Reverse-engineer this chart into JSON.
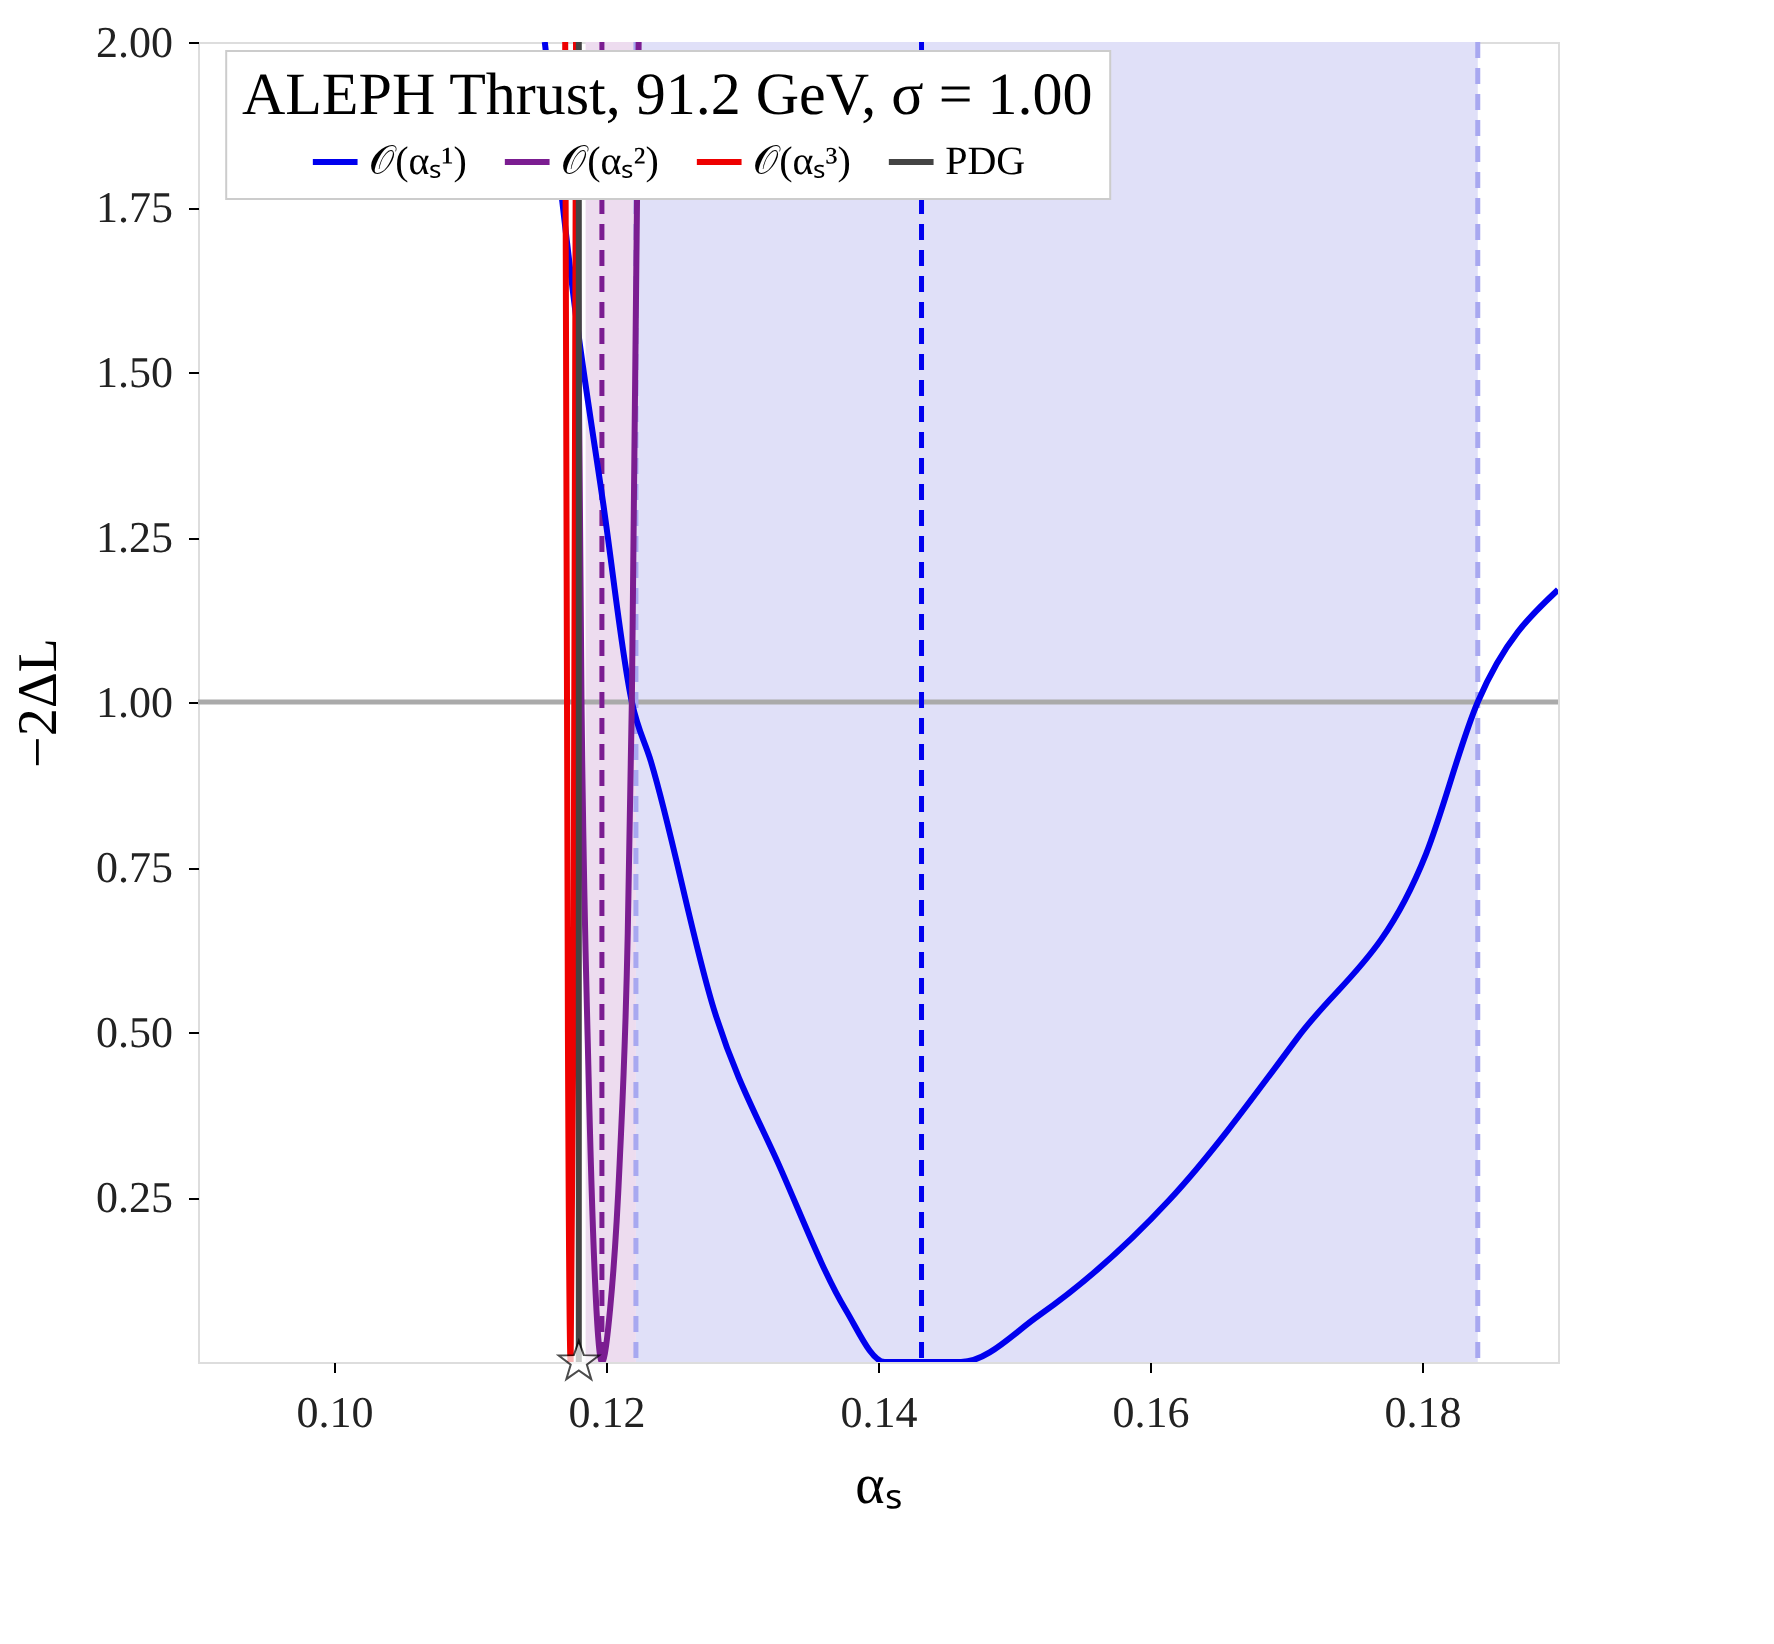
{
  "chart_data": {
    "type": "line",
    "legend_title": "ALEPH Thrust, 91.2 GeV, σ = 1.00",
    "xlabel": "αₛ",
    "ylabel": "−2ΔL",
    "xlim": [
      0.09,
      0.19
    ],
    "xticks": [
      {
        "value": 0.1,
        "label": "0.10"
      },
      {
        "value": 0.12,
        "label": "0.12"
      },
      {
        "value": 0.14,
        "label": "0.14"
      },
      {
        "value": 0.16,
        "label": "0.16"
      },
      {
        "value": 0.18,
        "label": "0.18"
      }
    ],
    "ylim": [
      0,
      2
    ],
    "yticks": [
      {
        "value": 0.25,
        "label": "0.25"
      },
      {
        "value": 0.5,
        "label": "0.50"
      },
      {
        "value": 0.75,
        "label": "0.75"
      },
      {
        "value": 1,
        "label": "1.00"
      },
      {
        "value": 1.25,
        "label": "1.25"
      },
      {
        "value": 1.5,
        "label": "1.50"
      },
      {
        "value": 1.75,
        "label": "1.75"
      },
      {
        "value": 2,
        "label": "2.00"
      }
    ],
    "grid": false,
    "legend": "top",
    "line_style": "solid",
    "bands": [
      {
        "axis": "x",
        "from": 0.1222,
        "to": 0.1841,
        "color": "#e0e0f8"
      },
      {
        "axis": "x",
        "from": 0.1185,
        "to": 0.1222,
        "color": "#eddcef"
      }
    ],
    "ref_lines": [
      {
        "axis": "y",
        "value": 1.0,
        "color": "#aaaaaa",
        "line_style": "solid"
      },
      {
        "axis": "x",
        "value": 0.1432,
        "color": "#0000ee",
        "line_style": "dashed"
      },
      {
        "axis": "x",
        "value": 0.1197,
        "color": "#7b1d91",
        "line_style": "dashed"
      },
      {
        "axis": "x",
        "value": 0.1222,
        "color": "#a8a8f0",
        "line_style": "dashed"
      },
      {
        "axis": "x",
        "value": 0.1841,
        "color": "#a8a8f0",
        "line_style": "dashed"
      }
    ],
    "series": [
      {
        "name": "𝒪(αₛ¹)",
        "color": "#0000ee",
        "x": [
          0.1155,
          0.1177,
          0.1198,
          0.1219,
          0.1233,
          0.128,
          0.1329,
          0.1376,
          0.1405,
          0.1461,
          0.1518,
          0.1614,
          0.1708,
          0.1803,
          0.1841,
          0.19
        ],
        "values": [
          2.0,
          1.6,
          1.3,
          1.0,
          0.91,
          0.53,
          0.29,
          0.08,
          0,
          0,
          0.07,
          0.245,
          0.49,
          0.77,
          1.0,
          1.17
        ]
      },
      {
        "name": "𝒪(αₛ²)",
        "color": "#7b1d91",
        "x": [
          0.1178,
          0.1182,
          0.1187,
          0.1192,
          0.1197,
          0.1203,
          0.121,
          0.1216,
          0.1219,
          0.1224
        ],
        "values": [
          2.0,
          1.0,
          0.45,
          0.12,
          0,
          0.08,
          0.3,
          0.65,
          1.0,
          2.0
        ]
      },
      {
        "name": "𝒪(αₛ³)",
        "color": "#ee0000",
        "x": [
          0.117,
          0.1172,
          0.1174,
          0.1176,
          0.1178
        ],
        "values": [
          2.0,
          0.5,
          0,
          0.5,
          2.0
        ]
      },
      {
        "name": "PDG",
        "color": "#444444",
        "x": [
          0.118,
          0.118
        ],
        "values": [
          0,
          2.0
        ]
      },
      {
        "type": "scatter",
        "marker": "star",
        "color": "#ffffff",
        "x": [
          0.118
        ],
        "values": [
          0
        ]
      }
    ]
  }
}
